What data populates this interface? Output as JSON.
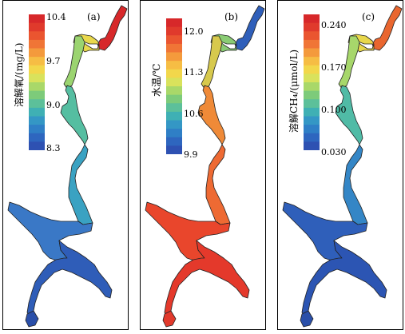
{
  "panels": [
    {
      "tag": "(a)",
      "title": "溶解氧/(mg/L)",
      "ticks": [
        "10.4",
        "9.7",
        "9.0",
        "8.3"
      ],
      "colorbar": [
        "#d7282a",
        "#e03a2c",
        "#ea5530",
        "#f07536",
        "#f49a3c",
        "#f6bd44",
        "#f2d74b",
        "#d9e25c",
        "#a9d869",
        "#7dcb7a",
        "#5cc09a",
        "#3fb0b4",
        "#3497c5",
        "#2f7fc6",
        "#2e66bf",
        "#2e51b2"
      ],
      "region_colors": {
        "head": "#d7282a",
        "upper": "#e9d84c",
        "neck": "#9bd470",
        "middle": "#55bea1",
        "lower": "#3aa2c2",
        "delta": "#3a78c6",
        "south": "#2f5db8",
        "tail": "#2a4fa9"
      }
    },
    {
      "tag": "(b)",
      "title": "水温/℃",
      "ticks": [
        "12.0",
        "11.3",
        "10.6",
        "9.9"
      ],
      "colorbar": [
        "#d7282a",
        "#e03a2c",
        "#ea5530",
        "#f07536",
        "#f49a3c",
        "#f6bd44",
        "#f2d74b",
        "#d9e25c",
        "#a9d869",
        "#7dcb7a",
        "#5cc09a",
        "#3fb0b4",
        "#3497c5",
        "#2f7fc6",
        "#2e66bf",
        "#2e51b2"
      ],
      "region_colors": {
        "head": "#2f5fba",
        "upper": "#8acc74",
        "neck": "#d7c94d",
        "middle": "#ef8a38",
        "lower": "#ee6a33",
        "delta": "#e9462c",
        "south": "#e4392b",
        "tail": "#e23a2c"
      }
    },
    {
      "tag": "(c)",
      "title": "溶解CH₄/(μmol/L)",
      "ticks": [
        "0.240",
        "0.170",
        "0.100",
        "0.030"
      ],
      "colorbar": [
        "#d7282a",
        "#e03a2c",
        "#ea5530",
        "#f07536",
        "#f49a3c",
        "#f6bd44",
        "#f2d74b",
        "#d9e25c",
        "#a9d869",
        "#7dcb7a",
        "#5cc09a",
        "#3fb0b4",
        "#3497c5",
        "#2f7fc6",
        "#2e66bf",
        "#2e51b2"
      ],
      "region_colors": {
        "head": "#e9662f",
        "upper": "#e8d74b",
        "neck": "#a7d76b",
        "middle": "#50bba6",
        "lower": "#3486c6",
        "delta": "#2f5fba",
        "south": "#2c55b3",
        "tail": "#2a4fa9"
      }
    }
  ]
}
